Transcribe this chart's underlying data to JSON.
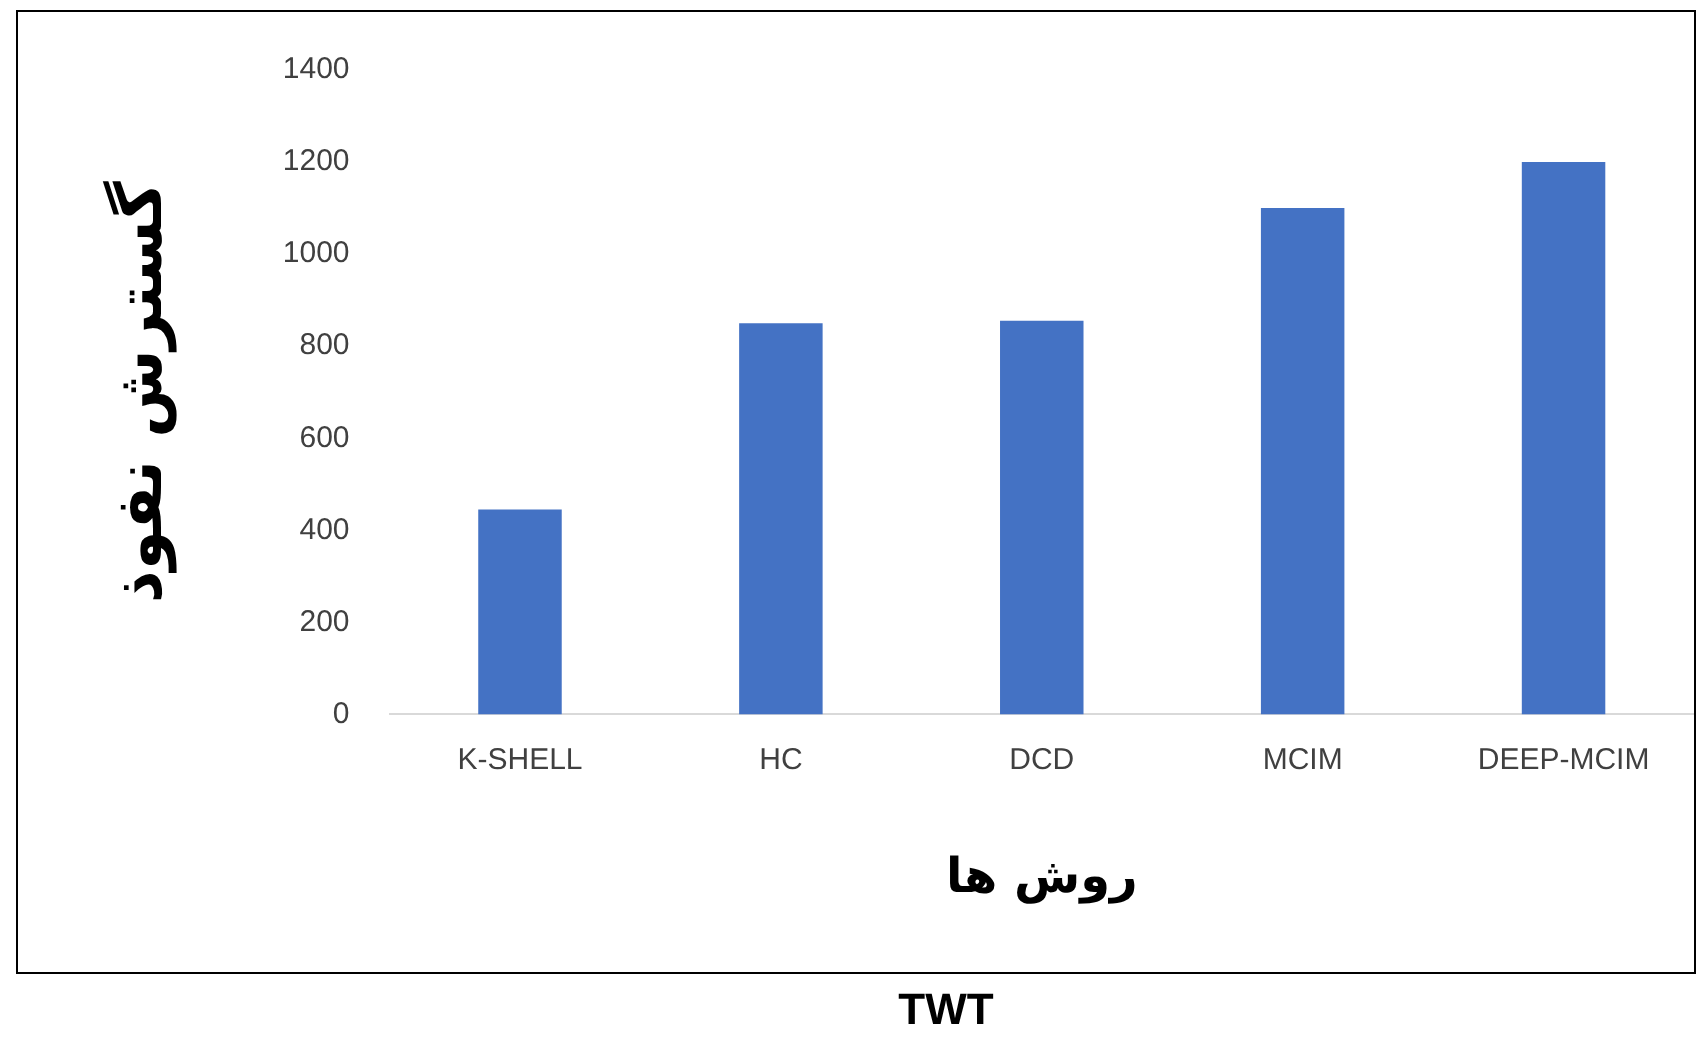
{
  "chart_data": {
    "type": "bar",
    "xlabel": "روش ها",
    "ylabel": "گسترش نفوذ",
    "categories": [
      "K-SHELL",
      "HC",
      "DCD",
      "MCIM",
      "DEEP-MCIM"
    ],
    "values": [
      445,
      850,
      855,
      1100,
      1200
    ],
    "color": "#4472c4",
    "ylim": [
      0,
      1400
    ],
    "yticks": [
      0,
      200,
      400,
      600,
      800,
      1000,
      1200,
      1400
    ],
    "grid": false,
    "legend": false,
    "annotations": [
      "TWT"
    ]
  }
}
